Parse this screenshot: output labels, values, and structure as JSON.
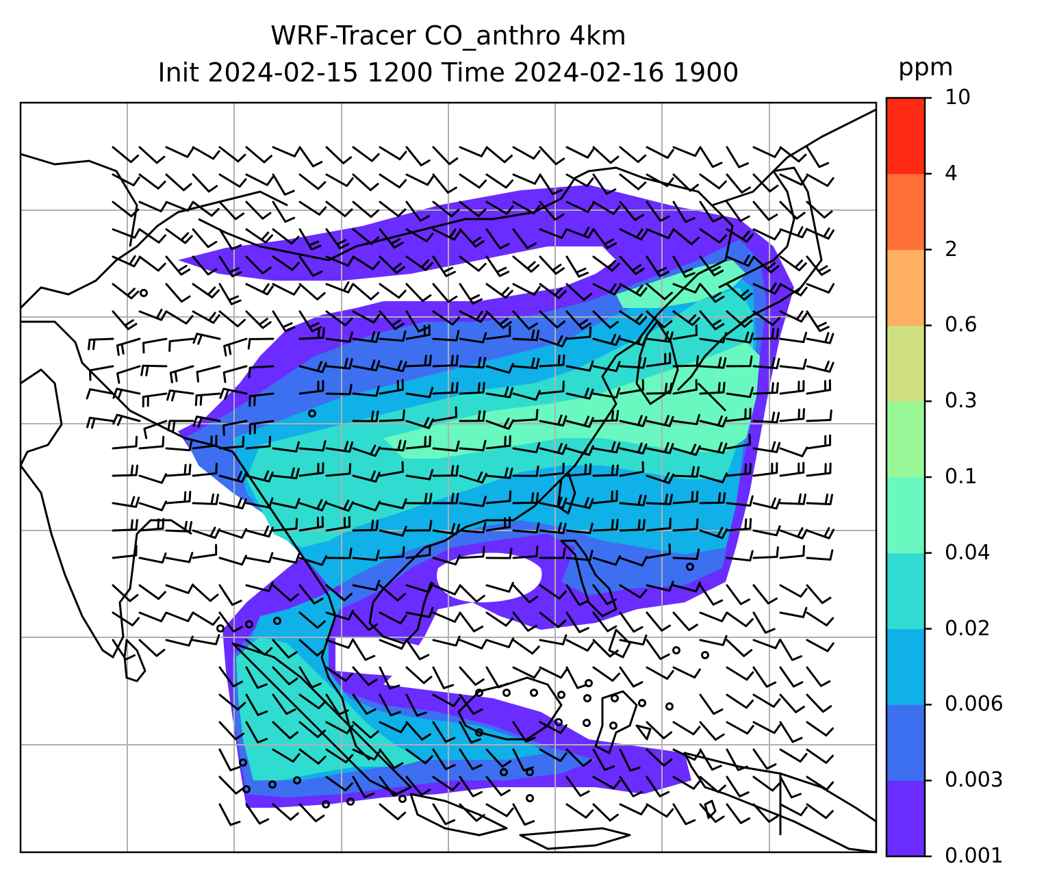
{
  "title": {
    "line1": "WRF-Tracer CO_anthro 4km",
    "line2": "Init 2024-02-15 1200 Time 2024-02-16 1900"
  },
  "colorbar": {
    "unit": "ppm",
    "ticks": [
      "0.001",
      "0.003",
      "0.006",
      "0.02",
      "0.04",
      "0.1",
      "0.3",
      "0.6",
      "2",
      "4",
      "10"
    ],
    "colors": [
      "#6a2cff",
      "#3c70f0",
      "#10b0e8",
      "#30dcd0",
      "#68f8c0",
      "#98f898",
      "#d0e080",
      "#ffb060",
      "#ff7038",
      "#ff2a14"
    ]
  },
  "map": {
    "gridlines": true,
    "coastlines": true,
    "wind_barbs": true
  }
}
